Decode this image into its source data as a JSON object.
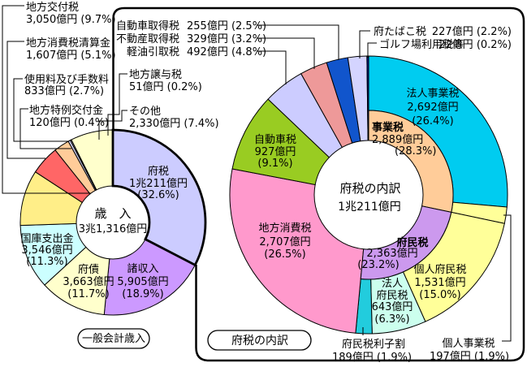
{
  "chart_data": [
    {
      "id": "general-account-revenue",
      "type": "donut",
      "title": "歳　入",
      "total": "3兆1,316億円",
      "badge": "一般会計歳入",
      "legend_position": "callouts",
      "slices": [
        {
          "key": "fuzei",
          "label": "府税",
          "value": "1兆211億円",
          "pct": "32.6",
          "color": "#CCCCFF",
          "emphasis": true
        },
        {
          "key": "shoshunyu",
          "label": "諸収入",
          "value": "5,905億円",
          "pct": "18.9",
          "color": "#CC99FF"
        },
        {
          "key": "fusai",
          "label": "府債",
          "value": "3,663億円",
          "pct": "11.7",
          "color": "#FFFFCC"
        },
        {
          "key": "kokko",
          "label": "国庫支出金",
          "value": "3,546億円",
          "pct": "11.3",
          "color": "#CCFFFF"
        },
        {
          "key": "koufuzei",
          "label": "地方交付税",
          "value": "3,050億円",
          "pct": "9.7",
          "color": "#FFEE88"
        },
        {
          "key": "seisankin",
          "label": "地方消費税清算金",
          "value": "1,607億円",
          "pct": "5.1",
          "color": "#FF6666"
        },
        {
          "key": "tesuuryou",
          "label": "使用料及び手数料",
          "value": "833億円",
          "pct": "2.7",
          "color": "#FFCC99"
        },
        {
          "key": "tokurei",
          "label": "地方特例交付金",
          "value": "120億円",
          "pct": "0.4",
          "color": "#CCCCEE"
        },
        {
          "key": "jouyozei",
          "label": "地方譲与税",
          "value": "51億円",
          "pct": "0.2",
          "color": "#EEEEFA"
        },
        {
          "key": "sonota",
          "label": "その他",
          "value": "2,330億円",
          "pct": "7.4",
          "color": "#FFFFCC"
        }
      ]
    },
    {
      "id": "prefectural-tax-breakdown",
      "type": "donut-2ring",
      "title": "府税の内訳",
      "total": "1兆211億円",
      "badge": "府税の内訳",
      "legend_position": "callouts",
      "slices": [
        {
          "key": "houjin_jigyouzei",
          "label": "法人事業税",
          "value": "2,692億円",
          "pct": "26.4",
          "color": "#00CCF0",
          "span": "outer"
        },
        {
          "key": "kojin_jigyouzei",
          "label": "個人事業税",
          "value": "197億円",
          "pct": "1.9",
          "color": "#FFFF99",
          "span": "outer"
        },
        {
          "key": "kojin_fuminzei",
          "label": "個人府民税",
          "value": "1,531億円",
          "pct": "15.0",
          "color": "#FFFF99",
          "span": "outer"
        },
        {
          "key": "houjin_fuminzei",
          "label": "法人府民税",
          "label_lines": [
            "法人",
            "府民税"
          ],
          "value": "643億円",
          "pct": "6.3",
          "color": "#CCFFEE",
          "span": "outer"
        },
        {
          "key": "rishiwari",
          "label": "府民税利子割",
          "value": "189億円",
          "pct": "1.9",
          "color": "#22CCDD",
          "span": "outer"
        },
        {
          "key": "chihou_shouhizei",
          "label": "地方消費税",
          "value": "2,707億円",
          "pct": "26.5",
          "color": "#FF99CC",
          "span": "full"
        },
        {
          "key": "jidoushazei",
          "label": "自動車税",
          "value": "927億円",
          "pct": "9.1",
          "color": "#99CC22",
          "span": "full"
        },
        {
          "key": "keiyu",
          "label": "軽油引取税",
          "value": "492億円",
          "pct": "4.8",
          "color": "#CCCCFF",
          "span": "full"
        },
        {
          "key": "fudousan",
          "label": "不動産取得税",
          "value": "329億円",
          "pct": "3.2",
          "color": "#EE9999",
          "span": "full"
        },
        {
          "key": "jidousha_shutoku",
          "label": "自動車取得税",
          "value": "255億円",
          "pct": "2.5",
          "color": "#1155CC",
          "span": "full"
        },
        {
          "key": "tabako",
          "label": "府たばこ税",
          "value": "227億円",
          "pct": "2.2",
          "color": "#D4D4FF",
          "span": "full"
        },
        {
          "key": "golf",
          "label": "ゴルフ場利用税等",
          "value": "22億円",
          "pct": "0.2",
          "color": "#001A99",
          "span": "full"
        }
      ],
      "inner_groups": [
        {
          "key": "jigyouzei",
          "label": "事業税",
          "value": "2,889億円",
          "pct": "28.3",
          "color": "#FFCC99"
        },
        {
          "key": "fuminzei",
          "label": "府民税",
          "value": "2,363億円",
          "pct": "23.2",
          "color": "#CC99EE"
        }
      ]
    }
  ]
}
